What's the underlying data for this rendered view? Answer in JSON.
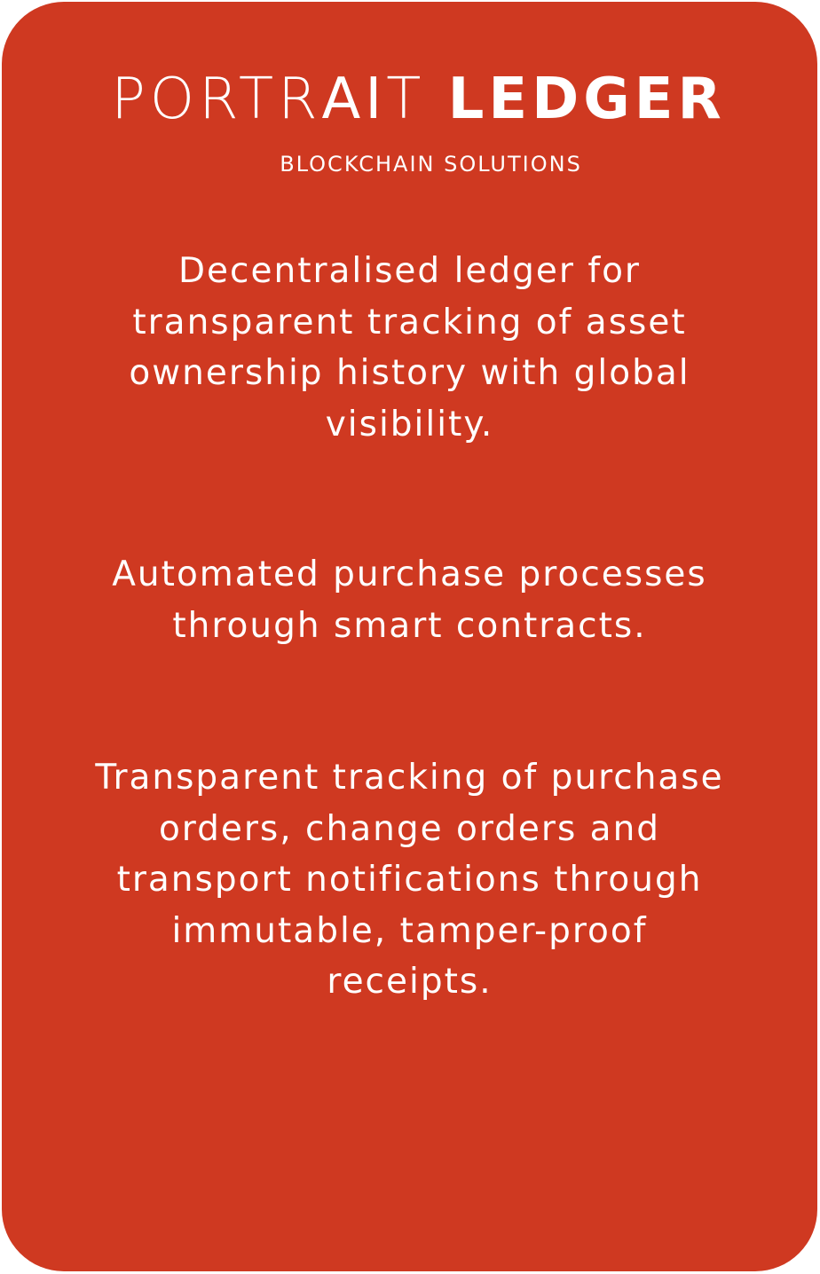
{
  "brand": {
    "part1": "PORTR",
    "part2": "AI",
    "part3": "T",
    "part4": "LEDGER"
  },
  "tagline": "BLOCKCHAIN SOLUTIONS",
  "features": [
    {
      "lines": [
        "Decentralised ledger for",
        "transparent tracking of asset",
        "ownership history with global",
        "visibility."
      ]
    },
    {
      "lines": [
        "Automated purchase processes",
        "through smart contracts."
      ]
    },
    {
      "lines": [
        "Transparent tracking of purchase",
        "orders, change orders and",
        "transport notifications through",
        "immutable, tamper-proof",
        "receipts."
      ]
    }
  ],
  "colors": {
    "card_background": "#cf3921",
    "text": "#ffffff"
  }
}
